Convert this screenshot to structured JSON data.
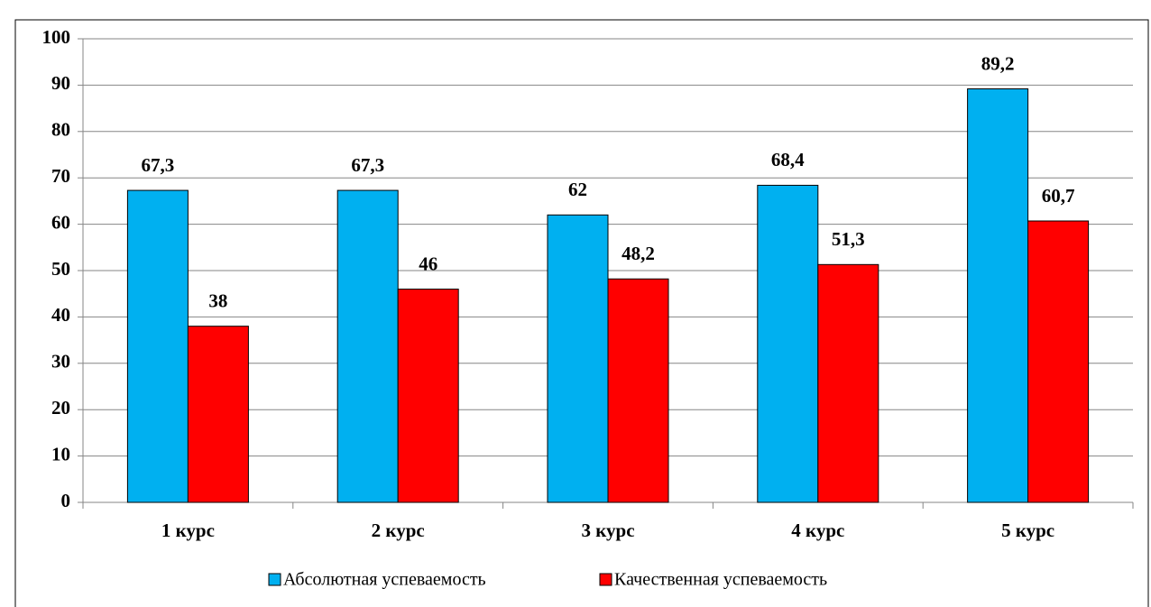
{
  "chart_data": {
    "type": "bar",
    "categories": [
      "1 курс",
      "2 курс",
      "3 курс",
      "4 курс",
      "5 курс"
    ],
    "series": [
      {
        "name": "Абсолютная успеваемость",
        "color": "#00b0f0",
        "values": [
          67.3,
          67.3,
          62,
          68.4,
          89.2
        ],
        "value_labels": [
          "67,3",
          "67,3",
          "62",
          "68,4",
          "89,2"
        ]
      },
      {
        "name": "Качественная успеваемость",
        "color": "#ff0000",
        "values": [
          38,
          46,
          48.2,
          51.3,
          60.7
        ],
        "value_labels": [
          "38",
          "46",
          "48,2",
          "51,3",
          "60,7"
        ]
      }
    ],
    "ylim": [
      0,
      100
    ],
    "yticks": [
      0,
      10,
      20,
      30,
      40,
      50,
      60,
      70,
      80,
      90,
      100
    ],
    "grid": true,
    "legend": "bottom"
  }
}
